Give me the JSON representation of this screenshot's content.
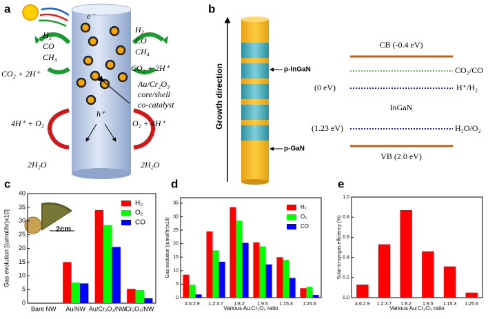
{
  "panel_a": {
    "label": "a",
    "electron": "e⁻",
    "hole": "h⁺",
    "products_left": [
      "H₂",
      "CO",
      "CH₄"
    ],
    "products_right": [
      "H₂",
      "CO",
      "CH₄"
    ],
    "reactant_left": "CO₂ + 2H⁺",
    "reactant_right": "CO₂ + 2H⁺",
    "cocatalyst": [
      "Au/Cr₂O₃",
      "core/shell",
      "co-catalyst"
    ],
    "oxygen_left": "4H⁺ + O₂",
    "oxygen_right": "O₂ + 4H⁺",
    "water_left": "2H₂O",
    "water_right": "2H₂O"
  },
  "panel_b": {
    "label": "b",
    "axis": "Growth direction",
    "segment_top": "p-InGaN",
    "segment_bottom": "p-GaN",
    "cb": "CB (-0.4 eV)",
    "co2": "CO₂/CO",
    "zero": "(0 eV)",
    "h2": "H⁺/H₂",
    "material": "InGaN",
    "o2_level": "(1.23 eV)",
    "o2": "H₂O/O₂",
    "vb": "VB (2.0 eV)"
  },
  "chart_data": [
    {
      "type": "bar",
      "label": "c",
      "inset_scale": "2cm",
      "ylabel": "Gas evolution [(umol/hr)x10]",
      "categories": [
        "Bare NW",
        "Au/NW",
        "Au/Cr₂O₃/NW",
        "Cr₂O₃/NW"
      ],
      "series": [
        {
          "name": "H₂",
          "color": "#ff0000",
          "values": [
            0,
            15,
            34,
            5.2
          ]
        },
        {
          "name": "O₂",
          "color": "#00ff00",
          "values": [
            0,
            7.5,
            28.5,
            4.8
          ]
        },
        {
          "name": "CO",
          "color": "#0000ff",
          "values": [
            0,
            7.2,
            20.5,
            1.8
          ]
        }
      ],
      "ylim": [
        0,
        40
      ],
      "yticks": [
        0,
        5,
        10,
        15,
        20,
        25,
        30,
        35,
        40
      ],
      "legend": "upper right"
    },
    {
      "type": "bar",
      "label": "d",
      "xlabel": "Various Au:Cr₂O₃ ratio",
      "ylabel": "Gas evolution [(umol/hr)x10]",
      "categories": [
        "4.6:2.9",
        "1.2:3.7",
        "1:8.2",
        "1:9.5",
        "1:15.3",
        "1:25.6"
      ],
      "series": [
        {
          "name": "H₂",
          "color": "#ff0000",
          "values": [
            8.5,
            24.5,
            33.5,
            20.5,
            15,
            3.5
          ]
        },
        {
          "name": "O₂",
          "color": "#00ff00",
          "values": [
            4.8,
            17.5,
            28.5,
            19,
            14,
            4
          ]
        },
        {
          "name": "CO",
          "color": "#0000ff",
          "values": [
            1.2,
            13.3,
            20.3,
            12.3,
            7.3,
            1
          ]
        }
      ],
      "ylim": [
        0,
        37
      ],
      "yticks": [
        0,
        5,
        10,
        15,
        20,
        25,
        30,
        35
      ],
      "legend": "upper right"
    },
    {
      "type": "bar",
      "label": "e",
      "xlabel": "Various Au:Cr₂O₃ ratio",
      "ylabel": "Solar-to-syngas efficiency (%)",
      "categories": [
        "4.6:2.9",
        "1.2:3.7",
        "1:8.2",
        "1:9.5",
        "1:15.3",
        "1:25.6"
      ],
      "series": [
        {
          "color": "#ff0000",
          "values": [
            0.13,
            0.53,
            0.87,
            0.46,
            0.31,
            0.05
          ]
        }
      ],
      "ylim": [
        0,
        1.0
      ],
      "yticks": [
        {
          "value": 0,
          "label": "0.0"
        },
        0.2,
        0.4,
        0.6,
        0.8,
        {
          "value": 1.0,
          "label": "1.0"
        }
      ]
    }
  ]
}
